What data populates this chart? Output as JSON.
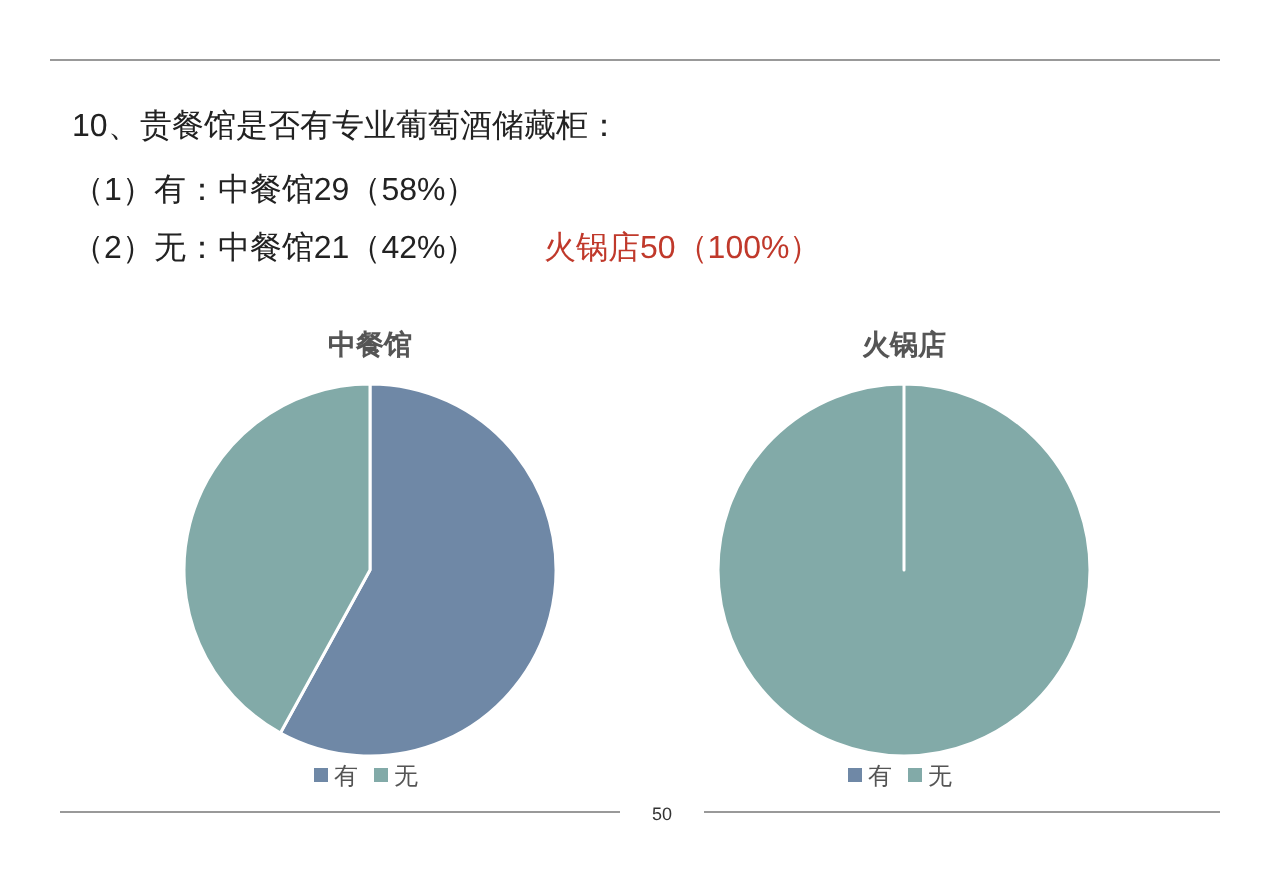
{
  "chart_data": [
    {
      "type": "other",
      "title": "10、贵餐馆是否有专业葡萄酒储藏柜：",
      "annotations": [
        "（1）有：中餐馆29（58%）",
        "（2）无：中餐馆21（42%）",
        "火锅店50（100%）",
        "50"
      ]
    },
    {
      "type": "pie",
      "title": "中餐馆",
      "categories": [
        "有",
        "无"
      ],
      "values": [
        58,
        42
      ],
      "colors": [
        "#6f88a6",
        "#82aaa8"
      ],
      "legend": "bottom"
    },
    {
      "type": "pie",
      "title": "火锅店",
      "categories": [
        "有",
        "无"
      ],
      "values": [
        0,
        100
      ],
      "colors": [
        "#6f88a6",
        "#82aaa8"
      ],
      "legend": "bottom"
    }
  ]
}
